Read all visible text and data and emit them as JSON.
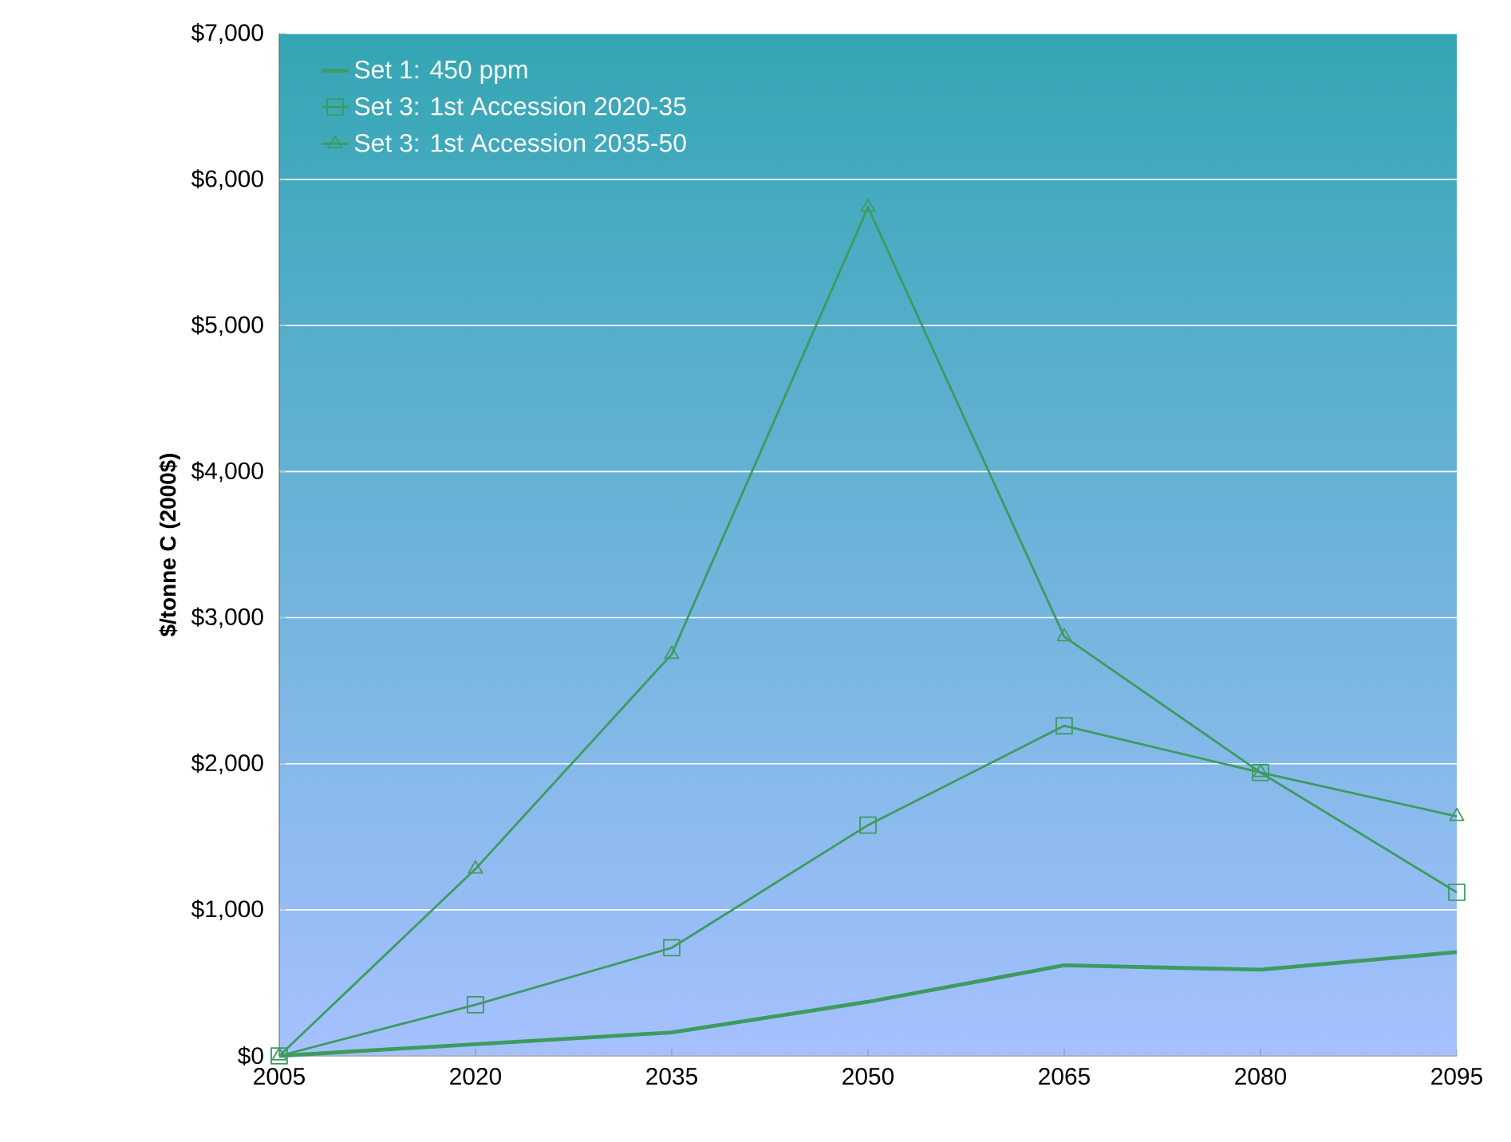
{
  "chart_data": {
    "type": "line",
    "ylabel": "$/tonne C (2000$)",
    "x": [
      2005,
      2020,
      2035,
      2050,
      2065,
      2080,
      2095
    ],
    "series": [
      {
        "name": "Set 1:  450 ppm",
        "color": "#3d9b5f",
        "marker": "none",
        "values": [
          0,
          80,
          160,
          370,
          620,
          590,
          710
        ]
      },
      {
        "name": "Set 3:  1st Accession 2020-35",
        "color": "#3d9b5f",
        "marker": "square",
        "values": [
          0,
          350,
          740,
          1580,
          2260,
          1940,
          1120
        ]
      },
      {
        "name": "Set 3:  1st Accession 2035-50",
        "color": "#3d9b5f",
        "marker": "triangle",
        "values": [
          0,
          1280,
          2750,
          5810,
          2870,
          1940,
          1640
        ]
      }
    ],
    "xlim": [
      2005,
      2095
    ],
    "xticks": [
      2005,
      2020,
      2035,
      2050,
      2065,
      2080,
      2095
    ],
    "ylim": [
      0,
      7000
    ],
    "yticks": [
      {
        "value": 0,
        "label": "$0"
      },
      {
        "value": 1000,
        "label": "$1,000"
      },
      {
        "value": 2000,
        "label": "$2,000"
      },
      {
        "value": 3000,
        "label": "$3,000"
      },
      {
        "value": 4000,
        "label": "$4,000"
      },
      {
        "value": 5000,
        "label": "$5,000"
      },
      {
        "value": 6000,
        "label": "$6,000"
      },
      {
        "value": 7000,
        "label": "$7,000"
      }
    ],
    "grid": "y",
    "legend": "top left",
    "line_style": "solid"
  }
}
